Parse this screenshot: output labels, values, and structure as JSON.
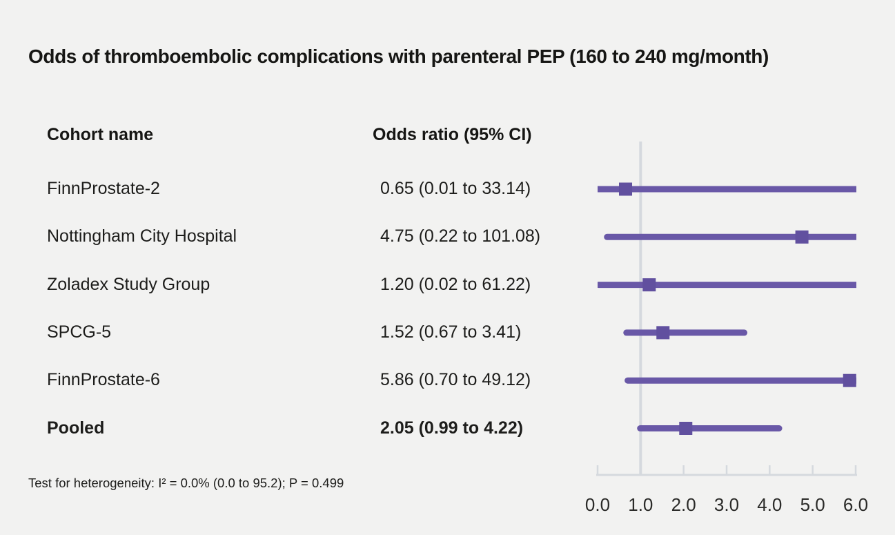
{
  "title": "Odds of thromboembolic complications with parenteral PEP (160 to 240 mg/month)",
  "columns": {
    "cohort": "Cohort name",
    "odds": "Odds ratio (95% CI)"
  },
  "footnote": "Test for heterogeneity: I² = 0.0% (0.0 to 95.2); P = 0.499",
  "colors": {
    "background": "#f2f2f1",
    "ci_line": "#6958a7",
    "marker": "#61509f",
    "axis": "#d5d9de",
    "text": "#1d1d1b",
    "tick_label": "#2a2a28"
  },
  "chart_data": {
    "type": "forest",
    "title": "Odds of thromboembolic complications with parenteral PEP (160 to 240 mg/month)",
    "xlabel": "",
    "ylabel": "",
    "legend": "none",
    "grid": false,
    "axis": {
      "min": 0.0,
      "max": 6.0,
      "ticks": [
        0.0,
        1.0,
        2.0,
        3.0,
        4.0,
        5.0,
        6.0
      ],
      "tick_labels": [
        "0.0",
        "1.0",
        "2.0",
        "3.0",
        "4.0",
        "5.0",
        "6.0"
      ],
      "reference_line": 1.0
    },
    "rows": [
      {
        "cohort": "FinnProstate-2",
        "label": "0.65 (0.01 to 33.14)",
        "or": 0.65,
        "lo": 0.01,
        "hi": 33.14,
        "bold": false
      },
      {
        "cohort": "Nottingham City Hospital",
        "label": "4.75 (0.22 to 101.08)",
        "or": 4.75,
        "lo": 0.22,
        "hi": 101.08,
        "bold": false
      },
      {
        "cohort": "Zoladex Study Group",
        "label": "1.20 (0.02 to 61.22)",
        "or": 1.2,
        "lo": 0.02,
        "hi": 61.22,
        "bold": false
      },
      {
        "cohort": "SPCG-5",
        "label": "1.52 (0.67 to 3.41)",
        "or": 1.52,
        "lo": 0.67,
        "hi": 3.41,
        "bold": false
      },
      {
        "cohort": "FinnProstate-6",
        "label": "5.86 (0.70 to 49.12)",
        "or": 5.86,
        "lo": 0.7,
        "hi": 49.12,
        "bold": false
      },
      {
        "cohort": "Pooled",
        "label": "2.05 (0.99 to 4.22)",
        "or": 2.05,
        "lo": 0.99,
        "hi": 4.22,
        "bold": true
      }
    ]
  }
}
